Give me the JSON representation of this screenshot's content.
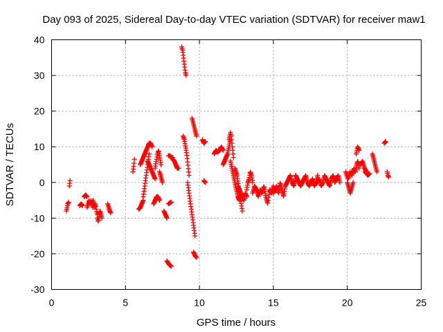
{
  "chart_data": {
    "type": "scatter",
    "title": "Day 093 of 2025, Sidereal Day-to-day VTEC variation (SDTVAR) for receiver maw1",
    "xlabel": "GPS time / hours",
    "ylabel": "SDTVAR / TECUs",
    "xlim": [
      0,
      25
    ],
    "ylim": [
      -30,
      40
    ],
    "x_ticks": [
      0,
      5,
      10,
      15,
      20,
      25
    ],
    "y_ticks": [
      -30,
      -20,
      -10,
      0,
      10,
      20,
      30,
      40
    ],
    "grid": true,
    "marker": "+",
    "color": "#ff0000",
    "series": [
      {
        "name": "SDTVAR",
        "segments": [
          {
            "x0": 1.0,
            "x1": 1.15,
            "y": [
              -8,
              -7,
              -6,
              -5.5
            ]
          },
          {
            "x0": 1.2,
            "x1": 1.25,
            "y": [
              -1,
              0.5
            ]
          },
          {
            "x0": 1.9,
            "x1": 2.1,
            "y": [
              -6.5,
              -6,
              -6.5
            ]
          },
          {
            "x0": 2.2,
            "x1": 2.4,
            "y": [
              -4,
              -3.5,
              -4
            ]
          },
          {
            "x0": 2.4,
            "x1": 2.8,
            "y": [
              -7,
              -6,
              -5,
              -6,
              -5,
              -6,
              -7
            ]
          },
          {
            "x0": 2.8,
            "x1": 3.1,
            "y": [
              -5,
              -6,
              -7,
              -6,
              -8,
              -9
            ]
          },
          {
            "x0": 3.1,
            "x1": 3.4,
            "y": [
              -10,
              -11,
              -9,
              -8,
              -9,
              -10
            ]
          },
          {
            "x0": 3.8,
            "x1": 4.0,
            "y": [
              -6,
              -7,
              -8,
              -8.5
            ]
          },
          {
            "x0": 5.5,
            "x1": 5.6,
            "y": [
              3,
              4,
              5,
              6.5
            ]
          },
          {
            "x0": 5.9,
            "x1": 6.2,
            "y": [
              -7.5,
              -7,
              -6,
              -5
            ]
          },
          {
            "x0": 6.2,
            "x1": 6.6,
            "y": [
              -4,
              -2,
              0,
              2,
              4,
              6,
              8
            ]
          },
          {
            "x0": 6.0,
            "x1": 6.4,
            "y": [
              5,
              6,
              7,
              8,
              9
            ]
          },
          {
            "x0": 6.4,
            "x1": 6.8,
            "y": [
              9,
              10,
              11,
              11,
              10
            ]
          },
          {
            "x0": 6.5,
            "x1": 7.0,
            "y": [
              6,
              5,
              4,
              3,
              2,
              1
            ]
          },
          {
            "x0": 6.9,
            "x1": 7.3,
            "y": [
              -6,
              -5,
              -4,
              -4,
              -5
            ]
          },
          {
            "x0": 7.0,
            "x1": 7.4,
            "y": [
              4,
              6,
              8,
              9,
              7,
              5
            ]
          },
          {
            "x0": 7.3,
            "x1": 7.5,
            "y": [
              3,
              2,
              1,
              0
            ]
          },
          {
            "x0": 7.6,
            "x1": 7.8,
            "y": [
              -8,
              -9,
              -10
            ]
          },
          {
            "x0": 7.8,
            "x1": 8.1,
            "y": [
              -22,
              -23,
              -23.5
            ]
          },
          {
            "x0": 7.9,
            "x1": 8.1,
            "y": [
              -6,
              -5.5
            ]
          },
          {
            "x0": 7.9,
            "x1": 8.2,
            "y": [
              7.5,
              7.5,
              7,
              7
            ]
          },
          {
            "x0": 8.2,
            "x1": 8.6,
            "y": [
              6.5,
              6,
              5,
              4,
              4
            ]
          },
          {
            "x0": 8.8,
            "x1": 9.1,
            "y": [
              38,
              37,
              35,
              33,
              31,
              30
            ]
          },
          {
            "x0": 8.9,
            "x1": 9.3,
            "y": [
              13,
              12,
              10,
              8,
              5,
              2
            ]
          },
          {
            "x0": 9.2,
            "x1": 9.7,
            "y": [
              0,
              -3,
              -6,
              -9,
              -12,
              -15
            ]
          },
          {
            "x0": 9.6,
            "x1": 9.8,
            "y": [
              -19.5,
              -20.5,
              -21
            ]
          },
          {
            "x0": 9.5,
            "x1": 9.8,
            "y": [
              18,
              17,
              16,
              15,
              14,
              13
            ]
          },
          {
            "x0": 10.2,
            "x1": 10.4,
            "y": [
              12,
              11,
              11.5
            ]
          },
          {
            "x0": 10.3,
            "x1": 10.4,
            "y": [
              0.5,
              0
            ]
          },
          {
            "x0": 11.0,
            "x1": 11.6,
            "y": [
              8,
              9,
              8.5,
              9,
              10,
              9
            ]
          },
          {
            "x0": 11.6,
            "x1": 12.1,
            "y": [
              5,
              6,
              7,
              8,
              10,
              12
            ]
          },
          {
            "x0": 12.0,
            "x1": 12.3,
            "y": [
              12,
              13,
              14,
              13,
              11,
              9,
              7
            ]
          },
          {
            "x0": 12.1,
            "x1": 12.7,
            "y": [
              6,
              4,
              2,
              0,
              -2,
              -4,
              -5
            ]
          },
          {
            "x0": 12.4,
            "x1": 12.9,
            "y": [
              4,
              3,
              2,
              0,
              -2,
              -4,
              -6,
              -8
            ]
          },
          {
            "x0": 12.6,
            "x1": 13.2,
            "y": [
              -1,
              -2,
              -3,
              -4,
              -5,
              -3,
              -4
            ]
          },
          {
            "x0": 13.2,
            "x1": 13.6,
            "y": [
              -2,
              0,
              1,
              3,
              2,
              0
            ]
          },
          {
            "x0": 13.6,
            "x1": 15.0,
            "y": [
              -3,
              -1,
              -2,
              -4,
              -2,
              -3,
              -1,
              -4,
              -6,
              -2,
              -3,
              -1
            ]
          },
          {
            "x0": 15.0,
            "x1": 16.5,
            "y": [
              -3,
              -2,
              -1,
              -3,
              0,
              -2,
              -4,
              -1,
              0,
              1,
              2,
              0,
              -1,
              1
            ]
          },
          {
            "x0": 16.5,
            "x1": 18.0,
            "y": [
              2,
              1,
              0,
              -1,
              0,
              1,
              2,
              0,
              -1,
              0,
              1,
              -1,
              0,
              2
            ]
          },
          {
            "x0": 18.0,
            "x1": 19.5,
            "y": [
              0,
              1,
              -1,
              0,
              2,
              1,
              0,
              -1,
              1,
              2,
              0,
              1,
              2,
              0
            ]
          },
          {
            "x0": 19.9,
            "x1": 20.2,
            "y": [
              3,
              2,
              1,
              2,
              3
            ]
          },
          {
            "x0": 20.0,
            "x1": 20.4,
            "y": [
              0,
              -1,
              -2,
              -3,
              -2,
              -1,
              0
            ]
          },
          {
            "x0": 20.3,
            "x1": 20.8,
            "y": [
              2,
              3,
              4,
              3,
              5,
              6,
              4
            ]
          },
          {
            "x0": 20.6,
            "x1": 20.8,
            "y": [
              8,
              10,
              9
            ]
          },
          {
            "x0": 20.9,
            "x1": 21.3,
            "y": [
              5,
              6,
              4,
              3
            ]
          },
          {
            "x0": 21.2,
            "x1": 21.5,
            "y": [
              3,
              2.5,
              2,
              2.5
            ]
          },
          {
            "x0": 21.7,
            "x1": 22.0,
            "y": [
              8,
              7,
              6,
              5,
              4,
              3
            ]
          },
          {
            "x0": 22.5,
            "x1": 22.6,
            "y": [
              11,
              11.5
            ]
          },
          {
            "x0": 22.7,
            "x1": 22.8,
            "y": [
              3,
              2,
              1.5
            ]
          }
        ]
      }
    ]
  }
}
